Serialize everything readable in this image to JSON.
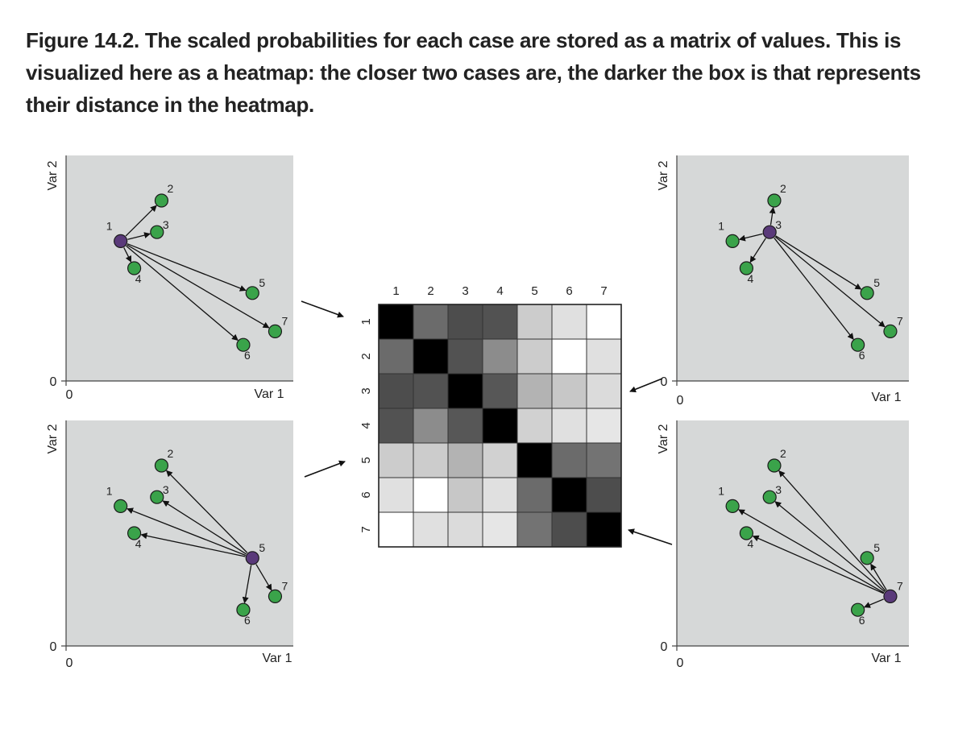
{
  "caption": "Figure 14.2. The scaled probabilities for each case are stored as a matrix of values. This is visualized here as a heatmap: the closer two cases are, the darker the box is that represents their distance in the heatmap.",
  "axes": {
    "x_label": "Var 1",
    "y_label": "Var 2",
    "origin_label": "0"
  },
  "colors": {
    "panel_bg": "#d6d8d8",
    "point_other": "#3aa34a",
    "point_focus": "#5a3a7a",
    "arrow": "#111111"
  },
  "points": [
    {
      "id": "1",
      "x": 0.24,
      "y": 0.62
    },
    {
      "id": "2",
      "x": 0.42,
      "y": 0.8
    },
    {
      "id": "3",
      "x": 0.4,
      "y": 0.66
    },
    {
      "id": "4",
      "x": 0.3,
      "y": 0.5
    },
    {
      "id": "5",
      "x": 0.82,
      "y": 0.39
    },
    {
      "id": "6",
      "x": 0.78,
      "y": 0.16
    },
    {
      "id": "7",
      "x": 0.92,
      "y": 0.22
    }
  ],
  "panels": [
    {
      "name": "top-left",
      "focus": "1"
    },
    {
      "name": "top-right",
      "focus": "3"
    },
    {
      "name": "bottom-left",
      "focus": "5"
    },
    {
      "name": "bottom-right",
      "focus": "7"
    }
  ],
  "heatmap": {
    "labels": [
      "1",
      "2",
      "3",
      "4",
      "5",
      "6",
      "7"
    ],
    "values": [
      [
        1.0,
        0.58,
        0.7,
        0.68,
        0.2,
        0.12,
        0.0
      ],
      [
        0.58,
        1.0,
        0.68,
        0.45,
        0.2,
        0.0,
        0.12
      ],
      [
        0.7,
        0.68,
        1.0,
        0.66,
        0.3,
        0.22,
        0.14
      ],
      [
        0.68,
        0.45,
        0.66,
        1.0,
        0.18,
        0.12,
        0.1
      ],
      [
        0.2,
        0.2,
        0.3,
        0.18,
        1.0,
        0.58,
        0.55
      ],
      [
        0.12,
        0.0,
        0.22,
        0.12,
        0.58,
        1.0,
        0.7
      ],
      [
        0.0,
        0.12,
        0.14,
        0.1,
        0.55,
        0.7,
        1.0
      ]
    ]
  }
}
